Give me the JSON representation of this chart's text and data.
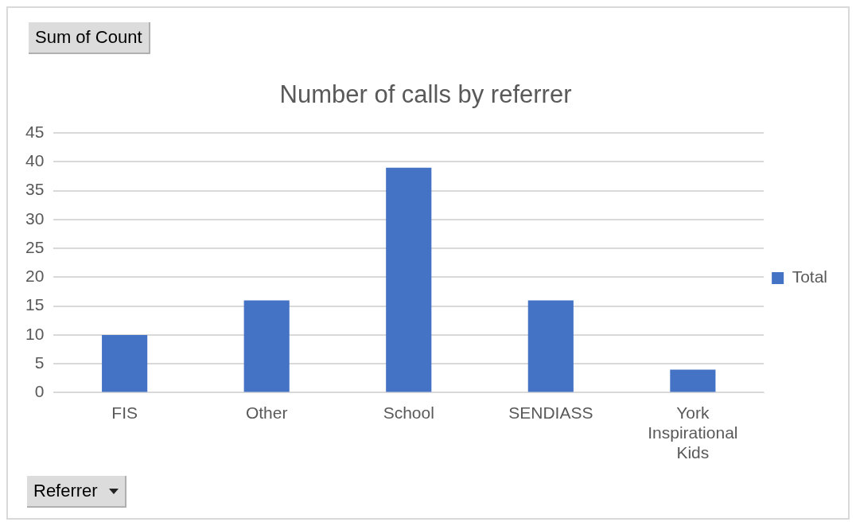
{
  "chart_data": {
    "type": "bar",
    "title": "Number of calls by referrer",
    "categories": [
      "FIS",
      "Other",
      "School",
      "SENDIASS",
      "York Inspirational Kids"
    ],
    "series": [
      {
        "name": "Total",
        "color": "#4472c4",
        "values": [
          10,
          16,
          39,
          16,
          4
        ]
      }
    ],
    "ylim": [
      0,
      45
    ],
    "yticks": [
      0,
      5,
      10,
      15,
      20,
      25,
      30,
      35,
      40,
      45
    ],
    "grid": "y",
    "legend": "right",
    "annotations": [
      "Sum of Count",
      "Referrer"
    ]
  }
}
